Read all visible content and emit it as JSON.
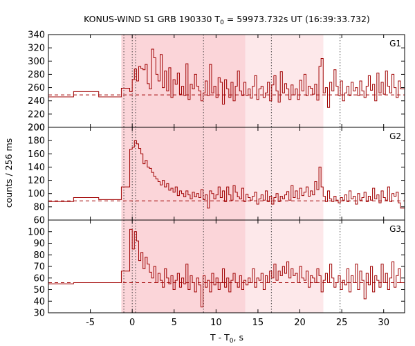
{
  "chart_data": {
    "type": "line",
    "title_prefix": "KONUS-WIND S1 GRB 190330 T",
    "title_sub": "0",
    "title_suffix": " = 59973.732s UT (16:39:33.732)",
    "ylabel": "counts / 256 ms",
    "xlabel_prefix": "T - T",
    "xlabel_sub": "0",
    "xlabel_suffix": ", s",
    "xlim": [
      -10,
      32.5
    ],
    "x_ticks": [
      -5,
      0,
      5,
      10,
      15,
      20,
      25,
      30
    ],
    "colors": {
      "line": "#a00000",
      "shade_light": "#fde8ea",
      "shade_dark": "#fbd5d9"
    },
    "shaded_intervals": [
      {
        "start": -1.3,
        "end": 13.5,
        "tone": "dark"
      },
      {
        "start": 13.5,
        "end": 22.8,
        "tone": "light"
      }
    ],
    "vertical_markers": [
      -1.0,
      0.0,
      0.4,
      8.5,
      16.6,
      24.8
    ],
    "panels": [
      {
        "label": "G1",
        "ylim": [
          200,
          340
        ],
        "y_ticks": [
          200,
          220,
          240,
          260,
          280,
          300,
          320,
          340
        ],
        "background": 249,
        "x": [
          -10.0,
          -7.0,
          -4.0,
          -1.3,
          -0.3,
          0.0,
          0.256,
          0.512,
          0.768,
          1.024,
          1.28,
          1.536,
          1.792,
          2.048,
          2.304,
          2.56,
          2.816,
          3.072,
          3.328,
          3.584,
          3.84,
          4.096,
          4.352,
          4.608,
          4.864,
          5.12,
          5.376,
          5.632,
          5.888,
          6.144,
          6.4,
          6.656,
          6.912,
          7.168,
          7.424,
          7.68,
          7.936,
          8.192,
          8.448,
          8.704,
          8.96,
          9.216,
          9.472,
          9.728,
          9.984,
          10.24,
          10.496,
          10.752,
          11.008,
          11.264,
          11.52,
          11.776,
          12.032,
          12.288,
          12.544,
          12.8,
          13.056,
          13.312,
          13.568,
          13.824,
          14.08,
          14.336,
          14.592,
          14.848,
          15.104,
          15.36,
          15.616,
          15.872,
          16.128,
          16.384,
          16.64,
          16.896,
          17.152,
          17.408,
          17.664,
          17.92,
          18.176,
          18.432,
          18.688,
          18.944,
          19.2,
          19.456,
          19.712,
          19.968,
          20.224,
          20.48,
          20.736,
          20.992,
          21.248,
          21.504,
          21.76,
          22.016,
          22.272,
          22.528,
          22.784,
          23.04,
          23.296,
          23.552,
          23.808,
          24.064,
          24.32,
          24.576,
          24.832,
          25.088,
          25.344,
          25.6,
          25.856,
          26.112,
          26.368,
          26.624,
          26.88,
          27.136,
          27.392,
          27.648,
          27.904,
          28.16,
          28.416,
          28.672,
          28.928,
          29.184,
          29.44,
          29.696,
          29.952,
          30.208,
          30.464,
          30.72,
          30.976,
          31.232,
          31.488,
          31.744,
          32.0
        ],
        "y": [
          246,
          254,
          246,
          259,
          254,
          272,
          288,
          270,
          292,
          289,
          287,
          295,
          266,
          258,
          318,
          305,
          280,
          270,
          310,
          260,
          285,
          255,
          290,
          245,
          272,
          265,
          282,
          250,
          262,
          248,
          296,
          242,
          265,
          258,
          280,
          262,
          255,
          240,
          252,
          270,
          248,
          295,
          252,
          262,
          245,
          275,
          268,
          235,
          272,
          258,
          245,
          268,
          240,
          262,
          285,
          255,
          248,
          268,
          248,
          258,
          244,
          262,
          278,
          242,
          258,
          262,
          245,
          252,
          268,
          240,
          264,
          278,
          255,
          238,
          284,
          252,
          266,
          258,
          242,
          264,
          249,
          258,
          242,
          271,
          255,
          280,
          248,
          262,
          259,
          250,
          265,
          241,
          292,
          304,
          252,
          260,
          230,
          268,
          255,
          287,
          262,
          248,
          270,
          240,
          252,
          262,
          248,
          268,
          255,
          260,
          248,
          270,
          255,
          245,
          262,
          278,
          256,
          265,
          240,
          282,
          252,
          268,
          250,
          285,
          262,
          252,
          280,
          260,
          245,
          270,
          258
        ]
      },
      {
        "label": "G2",
        "ylim": [
          60,
          200
        ],
        "y_ticks": [
          60,
          80,
          100,
          120,
          140,
          160,
          180,
          200
        ],
        "background": 89,
        "x": [
          -10.0,
          -7.0,
          -4.0,
          -1.3,
          -0.3,
          0.0,
          0.256,
          0.512,
          0.768,
          1.024,
          1.28,
          1.536,
          1.792,
          2.048,
          2.304,
          2.56,
          2.816,
          3.072,
          3.328,
          3.584,
          3.84,
          4.096,
          4.352,
          4.608,
          4.864,
          5.12,
          5.376,
          5.632,
          5.888,
          6.144,
          6.4,
          6.656,
          6.912,
          7.168,
          7.424,
          7.68,
          7.936,
          8.192,
          8.448,
          8.704,
          8.96,
          9.216,
          9.472,
          9.728,
          9.984,
          10.24,
          10.496,
          10.752,
          11.008,
          11.264,
          11.52,
          11.776,
          12.032,
          12.288,
          12.544,
          12.8,
          13.056,
          13.312,
          13.568,
          13.824,
          14.08,
          14.336,
          14.592,
          14.848,
          15.104,
          15.36,
          15.616,
          15.872,
          16.128,
          16.384,
          16.64,
          16.896,
          17.152,
          17.408,
          17.664,
          17.92,
          18.176,
          18.432,
          18.688,
          18.944,
          19.2,
          19.456,
          19.712,
          19.968,
          20.224,
          20.48,
          20.736,
          20.992,
          21.248,
          21.504,
          21.76,
          22.016,
          22.272,
          22.528,
          22.784,
          23.04,
          23.296,
          23.552,
          23.808,
          24.064,
          24.32,
          24.576,
          24.832,
          25.088,
          25.344,
          25.6,
          25.856,
          26.112,
          26.368,
          26.624,
          26.88,
          27.136,
          27.392,
          27.648,
          27.904,
          28.16,
          28.416,
          28.672,
          28.928,
          29.184,
          29.44,
          29.696,
          29.952,
          30.208,
          30.464,
          30.72,
          30.976,
          31.232,
          31.488,
          31.744,
          32.0
        ],
        "y": [
          88,
          94,
          91,
          110,
          167,
          170,
          180,
          175,
          168,
          160,
          145,
          150,
          140,
          138,
          132,
          126,
          122,
          118,
          113,
          120,
          110,
          115,
          105,
          108,
          102,
          110,
          97,
          104,
          100,
          95,
          104,
          98,
          92,
          102,
          95,
          100,
          94,
          106,
          91,
          98,
          78,
          104,
          100,
          92,
          98,
          110,
          94,
          104,
          88,
          110,
          98,
          90,
          112,
          102,
          95,
          92,
          108,
          88,
          99,
          94,
          90,
          96,
          102,
          84,
          92,
          98,
          90,
          104,
          88,
          96,
          84,
          94,
          100,
          88,
          96,
          92,
          98,
          103,
          90,
          112,
          94,
          104,
          92,
          108,
          97,
          102,
          110,
          96,
          104,
          98,
          118,
          106,
          140,
          110,
          96,
          88,
          104,
          92,
          88,
          96,
          90,
          86,
          94,
          90,
          98,
          88,
          104,
          92,
          96,
          84,
          100,
          90,
          94,
          102,
          88,
          96,
          90,
          108,
          92,
          98,
          86,
          104,
          94,
          90,
          110,
          88,
          100,
          96,
          102,
          86,
          78
        ]
      },
      {
        "label": "G3",
        "ylim": [
          30,
          110
        ],
        "y_ticks": [
          30,
          40,
          50,
          60,
          70,
          80,
          90,
          100
        ],
        "background": 56,
        "x": [
          -10.0,
          -7.0,
          -4.0,
          -1.3,
          -0.3,
          0.0,
          0.256,
          0.512,
          0.768,
          1.024,
          1.28,
          1.536,
          1.792,
          2.048,
          2.304,
          2.56,
          2.816,
          3.072,
          3.328,
          3.584,
          3.84,
          4.096,
          4.352,
          4.608,
          4.864,
          5.12,
          5.376,
          5.632,
          5.888,
          6.144,
          6.4,
          6.656,
          6.912,
          7.168,
          7.424,
          7.68,
          7.936,
          8.192,
          8.448,
          8.704,
          8.96,
          9.216,
          9.472,
          9.728,
          9.984,
          10.24,
          10.496,
          10.752,
          11.008,
          11.264,
          11.52,
          11.776,
          12.032,
          12.288,
          12.544,
          12.8,
          13.056,
          13.312,
          13.568,
          13.824,
          14.08,
          14.336,
          14.592,
          14.848,
          15.104,
          15.36,
          15.616,
          15.872,
          16.128,
          16.384,
          16.64,
          16.896,
          17.152,
          17.408,
          17.664,
          17.92,
          18.176,
          18.432,
          18.688,
          18.944,
          19.2,
          19.456,
          19.712,
          19.968,
          20.224,
          20.48,
          20.736,
          20.992,
          21.248,
          21.504,
          21.76,
          22.016,
          22.272,
          22.528,
          22.784,
          23.04,
          23.296,
          23.552,
          23.808,
          24.064,
          24.32,
          24.576,
          24.832,
          25.088,
          25.344,
          25.6,
          25.856,
          26.112,
          26.368,
          26.624,
          26.88,
          27.136,
          27.392,
          27.648,
          27.904,
          28.16,
          28.416,
          28.672,
          28.928,
          29.184,
          29.44,
          29.696,
          29.952,
          30.208,
          30.464,
          30.72,
          30.976,
          31.232,
          31.488,
          31.744,
          32.0
        ],
        "y": [
          55,
          56,
          56,
          66,
          102,
          85,
          100,
          92,
          75,
          82,
          68,
          78,
          72,
          65,
          60,
          70,
          56,
          64,
          58,
          52,
          68,
          60,
          55,
          62,
          50,
          58,
          64,
          52,
          60,
          55,
          72,
          50,
          62,
          56,
          48,
          60,
          54,
          35,
          62,
          52,
          58,
          48,
          64,
          54,
          60,
          50,
          56,
          68,
          52,
          60,
          48,
          58,
          64,
          56,
          52,
          62,
          50,
          58,
          54,
          60,
          56,
          68,
          52,
          60,
          58,
          64,
          50,
          62,
          56,
          66,
          60,
          72,
          58,
          66,
          62,
          70,
          64,
          74,
          60,
          68,
          62,
          64,
          56,
          70,
          60,
          58,
          66,
          52,
          62,
          60,
          56,
          68,
          62,
          48,
          58,
          64,
          56,
          72,
          60,
          52,
          56,
          62,
          50,
          58,
          54,
          68,
          48,
          62,
          56,
          72,
          50,
          66,
          58,
          42,
          64,
          54,
          70,
          48,
          62,
          58,
          52,
          72,
          56,
          64,
          50,
          60,
          74,
          52,
          62,
          68,
          56
        ]
      }
    ]
  }
}
